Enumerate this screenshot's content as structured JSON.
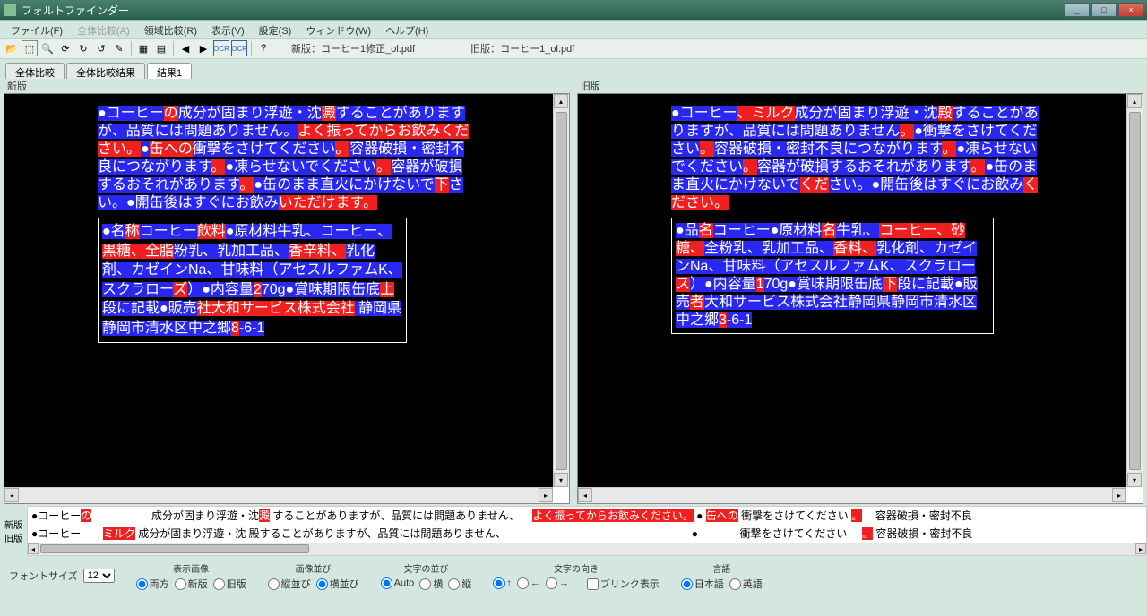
{
  "window": {
    "title": "フォルトファインダー"
  },
  "win_controls": {
    "min": "_",
    "max": "□",
    "close": "×"
  },
  "menu": {
    "file": "ファイル(F)",
    "compare_all": "全体比較(A)",
    "region_compare": "領域比較(R)",
    "view": "表示(V)",
    "settings": "設定(S)",
    "window": "ウィンドウ(W)",
    "help": "ヘルプ(H)"
  },
  "toolbar_info": {
    "new_label": "新版：",
    "new_file": "コーヒー1修正_ol.pdf",
    "old_label": "旧版：",
    "old_file": "コーヒー1_ol.pdf",
    "ocr": "OCR"
  },
  "tabs": {
    "t1": "全体比較",
    "t2": "全体比較結果",
    "t3": "結果1"
  },
  "panes": {
    "left_label": "新版",
    "right_label": "旧版"
  },
  "left_doc": {
    "p1": [
      {
        "t": "●コーヒー",
        "c": "blue"
      },
      {
        "t": "の",
        "c": "red"
      },
      {
        "t": "成分が固まり浮遊・沈",
        "c": "blue"
      },
      {
        "t": "澱",
        "c": "red"
      },
      {
        "t": "することがありますが、品質には問題ありません。",
        "c": "blue"
      },
      {
        "t": "よく振ってからお飲みください。",
        "c": "red"
      },
      {
        "t": "●",
        "c": "blue"
      },
      {
        "t": "缶への",
        "c": "red"
      },
      {
        "t": "衝撃をさけてください",
        "c": "blue"
      },
      {
        "t": "。",
        "c": "red"
      },
      {
        "t": "容器破損・密封不良につながります",
        "c": "blue"
      },
      {
        "t": "。",
        "c": "red"
      },
      {
        "t": "●凍らせないでください",
        "c": "blue"
      },
      {
        "t": "。",
        "c": "red"
      },
      {
        "t": "容器が破損するおそれがあります",
        "c": "blue"
      },
      {
        "t": "。",
        "c": "red"
      },
      {
        "t": "●缶のまま直火にかけないで",
        "c": "blue"
      },
      {
        "t": "下",
        "c": "red"
      },
      {
        "t": "さい。●開缶後はすぐにお飲み",
        "c": "blue"
      },
      {
        "t": "いただけます",
        "c": "red"
      },
      {
        "t": "。",
        "c": "red"
      }
    ],
    "p2": [
      {
        "t": "●名",
        "c": "blue"
      },
      {
        "t": "称",
        "c": "red"
      },
      {
        "t": "コーヒー",
        "c": "blue"
      },
      {
        "t": "飲料",
        "c": "red"
      },
      {
        "t": "●原材料牛乳、コーヒー、",
        "c": "blue"
      },
      {
        "t": "黒糖、全脂",
        "c": "red"
      },
      {
        "t": "粉乳、乳加工品、",
        "c": "blue"
      },
      {
        "t": "香辛料、",
        "c": "red"
      },
      {
        "t": "乳化剤、カゼインNa、甘味料（アセスルファムK、スクラロー",
        "c": "blue"
      },
      {
        "t": "ズ",
        "c": "red"
      },
      {
        "t": "）●内容量",
        "c": "blue"
      },
      {
        "t": "2",
        "c": "red"
      },
      {
        "t": "70g●賞味期限缶底",
        "c": "blue"
      },
      {
        "t": "上",
        "c": "red"
      },
      {
        "t": "段に記載●販売",
        "c": "blue"
      },
      {
        "t": "社",
        "c": "red"
      },
      {
        "t": "大和サービス株式会社",
        "c": "red"
      },
      {
        "t": " 静岡県静岡市清水区中之郷",
        "c": "blue"
      },
      {
        "t": "8",
        "c": "red"
      },
      {
        "t": "-6-1",
        "c": "blue"
      }
    ]
  },
  "right_doc": {
    "p1": [
      {
        "t": "●コーヒー",
        "c": "blue"
      },
      {
        "t": "、",
        "c": "red"
      },
      {
        "t": "ミルク",
        "c": "red"
      },
      {
        "t": "成分が固まり浮遊・沈",
        "c": "blue"
      },
      {
        "t": "殿",
        "c": "red"
      },
      {
        "t": "することがありますが、品質には問題ありません",
        "c": "blue"
      },
      {
        "t": "。",
        "c": "red"
      },
      {
        "t": "●衝撃をさけてください",
        "c": "blue"
      },
      {
        "t": "。",
        "c": "red"
      },
      {
        "t": "容器破損・密封不良につながります",
        "c": "blue"
      },
      {
        "t": "。",
        "c": "red"
      },
      {
        "t": "●凍らせないでください",
        "c": "blue"
      },
      {
        "t": "。",
        "c": "red"
      },
      {
        "t": "容器が破損するおそれがあります",
        "c": "blue"
      },
      {
        "t": "。",
        "c": "red"
      },
      {
        "t": "●缶のまま直火にかけないで",
        "c": "blue"
      },
      {
        "t": "くだ",
        "c": "red"
      },
      {
        "t": "さい。●開缶後はすぐにお飲み",
        "c": "blue"
      },
      {
        "t": "ください",
        "c": "red"
      },
      {
        "t": "。",
        "c": "red"
      }
    ],
    "p2": [
      {
        "t": "●品",
        "c": "blue"
      },
      {
        "t": "名",
        "c": "red"
      },
      {
        "t": "コーヒー●原材料",
        "c": "blue"
      },
      {
        "t": "名",
        "c": "red"
      },
      {
        "t": "牛乳、",
        "c": "blue"
      },
      {
        "t": "コーヒー、砂糖、",
        "c": "red"
      },
      {
        "t": "全粉乳、乳加工品、",
        "c": "blue"
      },
      {
        "t": "香料、",
        "c": "red"
      },
      {
        "t": "乳化剤、カゼインNa、甘味料（アセスルファムK、スクラロー",
        "c": "blue"
      },
      {
        "t": "ス",
        "c": "red"
      },
      {
        "t": "）●内容量",
        "c": "blue"
      },
      {
        "t": "1",
        "c": "red"
      },
      {
        "t": "70g●賞味期限缶底",
        "c": "blue"
      },
      {
        "t": "下",
        "c": "red"
      },
      {
        "t": "段に記載●販売",
        "c": "blue"
      },
      {
        "t": "者",
        "c": "red"
      },
      {
        "t": "大和サービス株式会社静岡県静岡市清水区中之郷",
        "c": "blue"
      },
      {
        "t": "3",
        "c": "red"
      },
      {
        "t": "-6-1",
        "c": "blue"
      }
    ]
  },
  "strip": {
    "label_new": "新版",
    "label_old": "旧版",
    "row_new": "●コーヒーの          成分が固まり浮遊・沈澱  することがありますが、品質には問題ありません、",
    "row_new_hl1": "の",
    "row_new_mid": "よく振ってからお飲みください。",
    "row_new_mid2": "●",
    "row_new_mid3": "缶への",
    "row_new_tail": "衝撃をさけてください",
    "row_new_tail2": "。",
    "row_new_tail3": "容器破損・密封不良",
    "row_old": "●コーヒー",
    "row_old_hl": "ミルク",
    "row_old_mid": "成分が固まり浮遊・沈    殿することがありますが、品質には問題ありません、",
    "row_old_dot": "●",
    "row_old_tail": "衝撃をさけてください",
    "row_old_tail2": "。",
    "row_old_tail3": "容器破損・密封不良"
  },
  "controls": {
    "fontsize_label": "フォントサイズ",
    "fontsize_value": "12",
    "disp_image": "表示画像",
    "both": "両方",
    "new": "新版",
    "old": "旧版",
    "img_arrange": "画像並び",
    "vert": "縦並び",
    "horiz": "横並び",
    "text_arrange": "文字の並び",
    "auto": "Auto",
    "h": "横",
    "v": "縦",
    "text_dir": "文字の向き",
    "up": "↑",
    "left": "←",
    "right": "→",
    "blink": "ブリンク表示",
    "lang": "言語",
    "jp": "日本語",
    "en": "英語"
  }
}
